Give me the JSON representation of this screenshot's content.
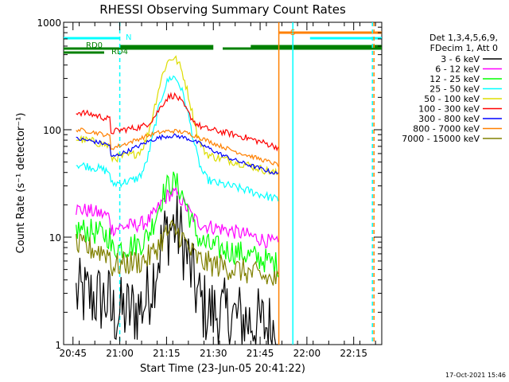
{
  "chart_data": {
    "type": "line",
    "title": "RHESSI Observing Summary Count Rates",
    "xlabel": "Start Time (23-Jun-05 20:41:22)",
    "ylabel": "Count Rate (s⁻¹ detector⁻¹)",
    "yscale": "log",
    "ylim": [
      1,
      1000
    ],
    "xlim_minutes": [
      -3,
      99
    ],
    "x_ticks": [
      "20:45",
      "21:00",
      "21:15",
      "21:30",
      "21:45",
      "22:00",
      "22:15"
    ],
    "x_tick_minutes": [
      0,
      15,
      30,
      45,
      60,
      75,
      90
    ],
    "y_ticks": [
      "1",
      "10",
      "100",
      "1000"
    ],
    "y_tick_values": [
      1,
      10,
      100,
      1000
    ],
    "legend": {
      "header": [
        "Det 1,3,4,5,6,9,",
        "FDecim 1, Att 0"
      ],
      "placement": "right"
    },
    "series": [
      {
        "name": "3 - 6 keV",
        "color": "#000000",
        "base": 1.6,
        "peak": 12,
        "noise": 0.35
      },
      {
        "name": "6 - 12 keV",
        "color": "#ff00ff",
        "base": 10,
        "peak": 22,
        "noise": 0.07
      },
      {
        "name": "12 - 25 keV",
        "color": "#00ff00",
        "base": 6.5,
        "peak": 30,
        "noise": 0.12
      },
      {
        "name": "25 - 50 keV",
        "color": "#00ffff",
        "base": 26,
        "peak": 300,
        "noise": 0.04
      },
      {
        "name": "50 - 100 keV",
        "color": "#dddd00",
        "base": 45,
        "peak": 450,
        "noise": 0.04
      },
      {
        "name": "100 - 300 keV",
        "color": "#ff0000",
        "base": 80,
        "peak": 180,
        "noise": 0.03
      },
      {
        "name": "300 - 800 keV",
        "color": "#0000ff",
        "base": 45,
        "peak": 72,
        "noise": 0.02
      },
      {
        "name": "800 - 7000 keV",
        "color": "#ff8000",
        "base": 55,
        "peak": 78,
        "noise": 0.02
      },
      {
        "name": "7000 - 15000 keV",
        "color": "#808000",
        "base": 4.5,
        "peak": 10,
        "noise": 0.12
      }
    ],
    "data_gaps": [
      [
        -3,
        1
      ],
      [
        66,
        99
      ]
    ],
    "annotations": [
      {
        "label": "RD0",
        "color": "#008000"
      },
      {
        "label": "RD4",
        "color": "#008000"
      },
      {
        "label": "N",
        "color": "#00ffff"
      },
      {
        "label": "S",
        "color": "#ff8000"
      }
    ],
    "flag_bars": [
      {
        "name": "RD0",
        "color": "#008000",
        "ranges": [
          [
            -3,
            10
          ]
        ]
      },
      {
        "name": "RD4",
        "color": "#008000",
        "ranges": [
          [
            -3,
            45
          ],
          [
            48,
            99
          ]
        ]
      },
      {
        "name": "N",
        "color": "#00ffff",
        "ranges": [
          [
            -3,
            15
          ],
          [
            76,
            99
          ]
        ]
      },
      {
        "name": "S",
        "color": "#ff8000",
        "ranges": [
          [
            66,
            99
          ]
        ]
      }
    ],
    "vertical_markers": [
      {
        "minute": 15,
        "color": "#00ffff",
        "style": "dashed"
      },
      {
        "minute": 66,
        "color": "#ff8000",
        "style": "solid"
      },
      {
        "minute": 70.5,
        "color": "#00ffff",
        "style": "solid"
      },
      {
        "minute": 96,
        "color": "#00ffff",
        "style": "dashed"
      },
      {
        "minute": 96.5,
        "color": "#ff8000",
        "style": "dashed"
      }
    ],
    "grid": false
  },
  "footer": {
    "timestamp": "17-Oct-2021 15:46"
  }
}
